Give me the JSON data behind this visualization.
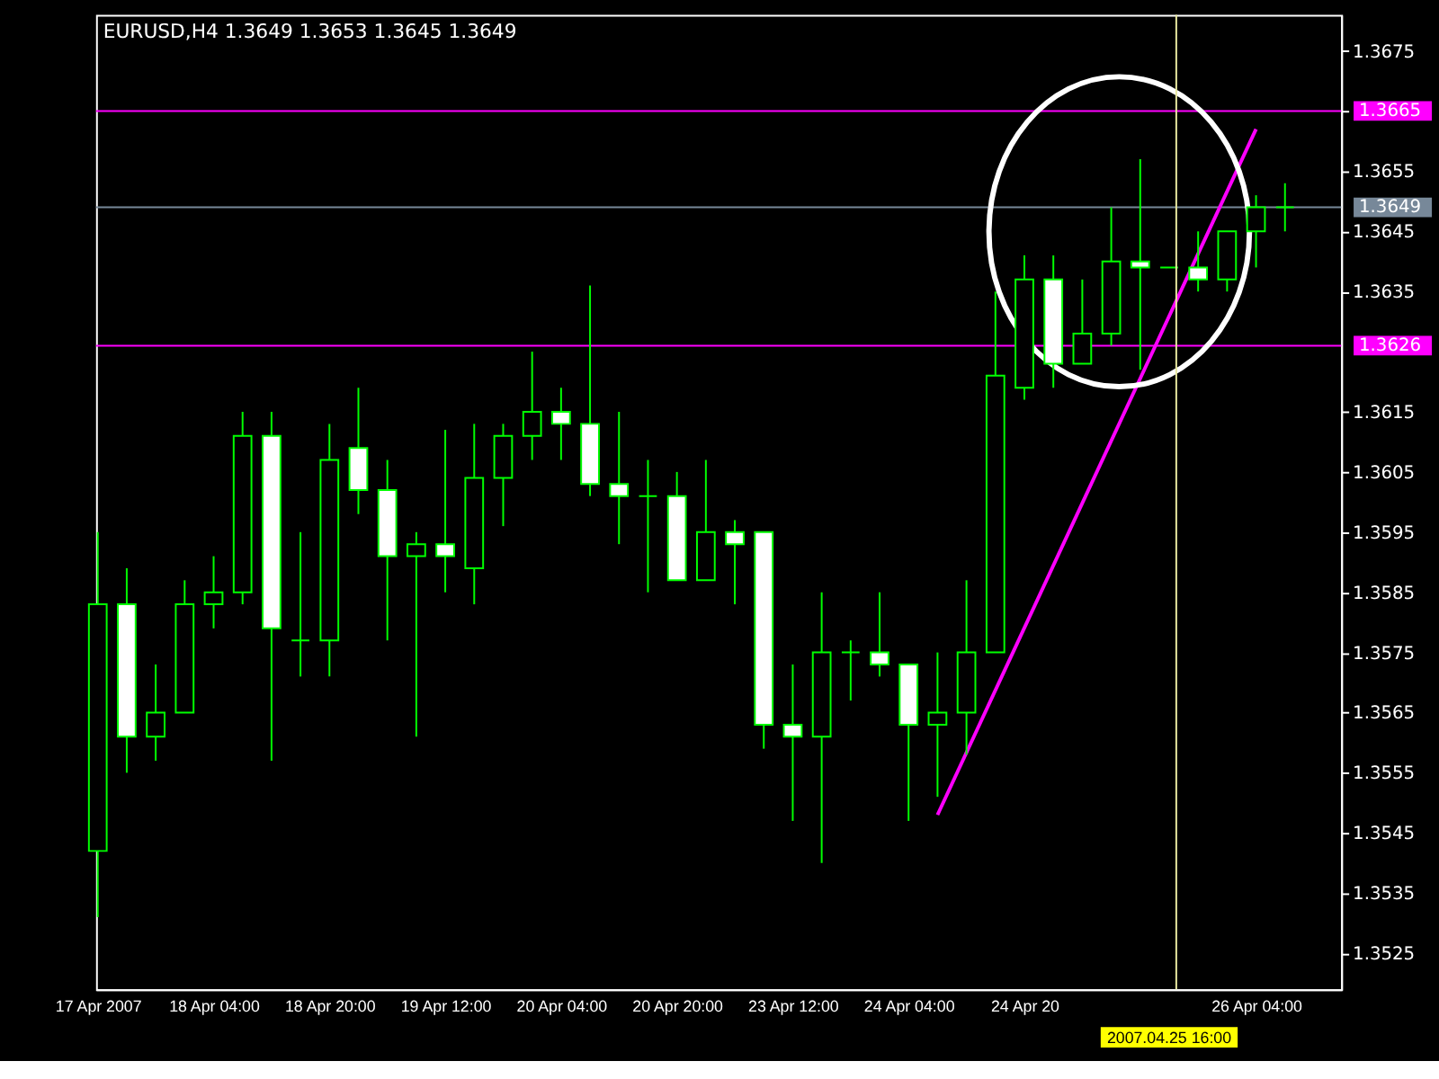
{
  "chart_data": {
    "type": "candlestick",
    "title": "EURUSD,H4  1.3649 1.3653 1.3645 1.3649",
    "categories": [
      "17 Apr 2007",
      null,
      null,
      null,
      "18 Apr 04:00",
      null,
      null,
      null,
      "18 Apr 20:00",
      null,
      null,
      null,
      "19 Apr 12:00",
      null,
      null,
      null,
      "20 Apr 04:00",
      null,
      null,
      null,
      "20 Apr 20:00",
      null,
      null,
      null,
      "23 Apr 12:00",
      null,
      null,
      null,
      "24 Apr 04:00",
      null,
      null,
      null,
      "24 Apr 20",
      null,
      null,
      null,
      null,
      "2007.04.25 16:00",
      null,
      null,
      "26 Apr 04:00",
      null
    ],
    "color": "#00ff00",
    "ohlc": [
      [
        1.3542,
        1.3595,
        1.3531,
        1.3583
      ],
      [
        1.3583,
        1.3589,
        1.3555,
        1.3561
      ],
      [
        1.3561,
        1.3573,
        1.3557,
        1.3565
      ],
      [
        1.3565,
        1.3587,
        1.3565,
        1.3583
      ],
      [
        1.3583,
        1.3591,
        1.3579,
        1.3585
      ],
      [
        1.3585,
        1.3615,
        1.3583,
        1.3611
      ],
      [
        1.3611,
        1.3615,
        1.3557,
        1.3579
      ],
      [
        1.3577,
        1.3595,
        1.3571,
        1.3577
      ],
      [
        1.3577,
        1.3613,
        1.3571,
        1.3607
      ],
      [
        1.3609,
        1.3619,
        1.3598,
        1.3602
      ],
      [
        1.3602,
        1.3607,
        1.3577,
        1.3591
      ],
      [
        1.3591,
        1.3595,
        1.3561,
        1.3593
      ],
      [
        1.3593,
        1.3612,
        1.3585,
        1.3591
      ],
      [
        1.3589,
        1.3613,
        1.3583,
        1.3604
      ],
      [
        1.3604,
        1.3613,
        1.3596,
        1.3611
      ],
      [
        1.3611,
        1.3625,
        1.3607,
        1.3615
      ],
      [
        1.3615,
        1.3619,
        1.3607,
        1.3613
      ],
      [
        1.3613,
        1.3636,
        1.3601,
        1.3603
      ],
      [
        1.3603,
        1.3615,
        1.3593,
        1.3601
      ],
      [
        1.3601,
        1.3607,
        1.3585,
        1.3601
      ],
      [
        1.3601,
        1.3605,
        1.3587,
        1.3587
      ],
      [
        1.3587,
        1.3607,
        1.3587,
        1.3595
      ],
      [
        1.3595,
        1.3597,
        1.3583,
        1.3593
      ],
      [
        1.3595,
        1.3595,
        1.3559,
        1.3563
      ],
      [
        1.3563,
        1.3573,
        1.3547,
        1.3561
      ],
      [
        1.3561,
        1.3585,
        1.354,
        1.3575
      ],
      [
        1.3575,
        1.3577,
        1.3567,
        1.3575
      ],
      [
        1.3575,
        1.3585,
        1.3571,
        1.3573
      ],
      [
        1.3573,
        1.3573,
        1.3547,
        1.3563
      ],
      [
        1.3563,
        1.3575,
        1.3551,
        1.3565
      ],
      [
        1.3565,
        1.3587,
        1.3558,
        1.3575
      ],
      [
        1.3575,
        1.3635,
        1.3575,
        1.3621
      ],
      [
        1.3619,
        1.3641,
        1.3617,
        1.3637
      ],
      [
        1.3637,
        1.3641,
        1.3619,
        1.3623
      ],
      [
        1.3623,
        1.3637,
        1.3623,
        1.3628
      ],
      [
        1.3628,
        1.3649,
        1.3626,
        1.364
      ],
      [
        1.364,
        1.3657,
        1.3622,
        1.3639
      ],
      [
        1.3639,
        1.3639,
        1.3639,
        1.3639
      ],
      [
        1.3639,
        1.3645,
        1.3635,
        1.3637
      ],
      [
        1.3637,
        1.3645,
        1.3635,
        1.3645
      ],
      [
        1.3645,
        1.3651,
        1.3639,
        1.3649
      ],
      [
        1.3649,
        1.3653,
        1.3645,
        1.3649
      ]
    ],
    "series": [
      {
        "type": "line",
        "values": [
          null,
          null,
          null,
          null,
          null,
          null,
          null,
          null,
          null,
          null,
          null,
          null,
          null,
          null,
          null,
          null,
          null,
          null,
          null,
          null,
          null,
          null,
          null,
          null,
          null,
          null,
          null,
          null,
          null,
          1.3548,
          null,
          null,
          null,
          null,
          null,
          null,
          null,
          null,
          null,
          null,
          1.3662,
          null
        ],
        "color": "#ff00ff"
      }
    ],
    "ylim": [
      1.3519,
      1.3681
    ],
    "yticks": [
      1.3525,
      1.3535,
      1.3545,
      1.3555,
      1.3565,
      1.3575,
      1.3585,
      1.3595,
      1.3605,
      1.3615,
      1.3635,
      1.3645,
      1.3655,
      {
        "value": 1.3665,
        "label": null
      },
      1.3675
    ],
    "ref_lines": [
      {
        "axis": "y",
        "value": 1.3665,
        "label": "1.3665",
        "color": "#ff00ff"
      },
      {
        "axis": "y",
        "value": 1.3626,
        "label": "1.3626",
        "color": "#ff00ff"
      },
      {
        "axis": "y",
        "value": 1.3649,
        "label": "1.3649",
        "color": "#778899"
      },
      {
        "axis": "x",
        "value": "2007.04.25 16:00",
        "color": "#e8e8a0"
      }
    ],
    "grid": false
  }
}
